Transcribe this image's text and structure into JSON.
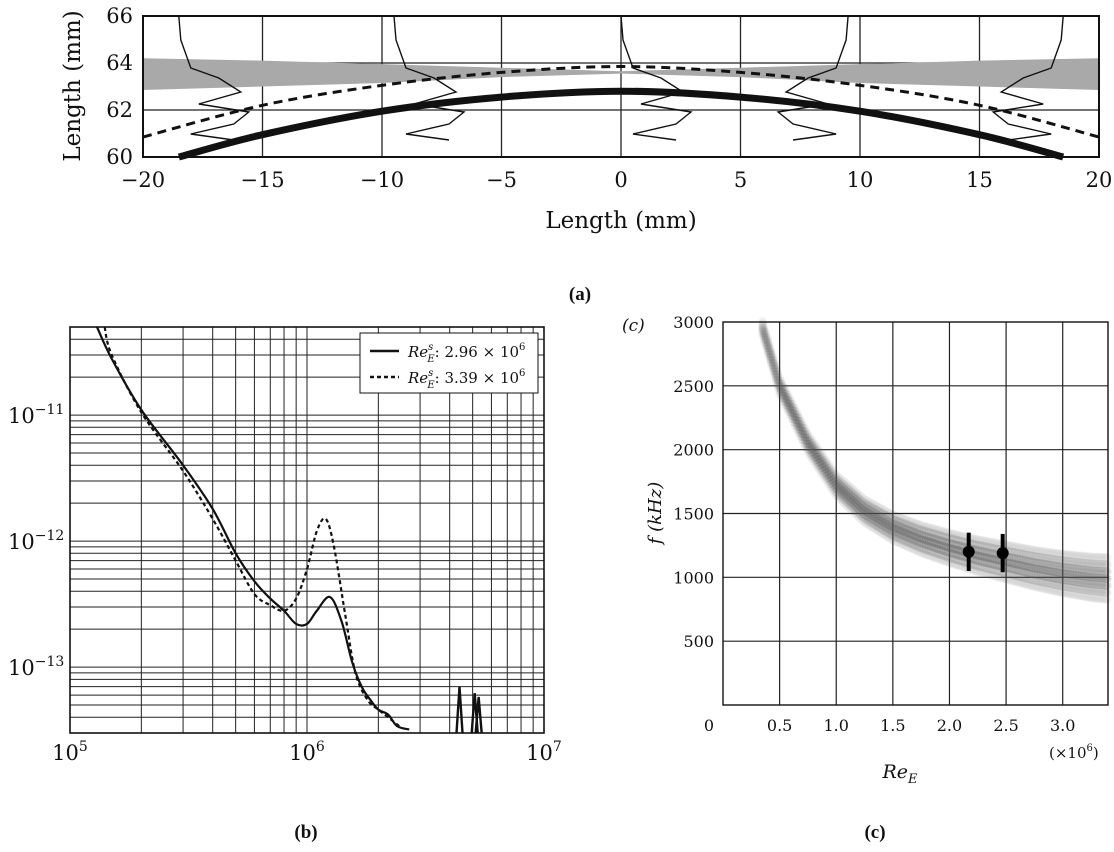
{
  "chart_data": [
    {
      "panel": "a",
      "type": "line",
      "caption": "(a)",
      "xlabel": "Length (mm)",
      "ylabel": "Length (mm)",
      "xlim": [
        -20,
        20
      ],
      "ylim": [
        60,
        66
      ],
      "x_ticks": [
        "−20",
        "−15",
        "−10",
        "−5",
        "0",
        "5",
        "10",
        "15",
        "20"
      ],
      "y_ticks": [
        "60",
        "62",
        "64",
        "66"
      ],
      "grid": true,
      "band": {
        "x": [
          -20,
          -15,
          -10,
          -5,
          0,
          5,
          10,
          15,
          20
        ],
        "upper": [
          64.2,
          64.1,
          63.95,
          63.8,
          63.65,
          63.8,
          63.95,
          64.1,
          64.2
        ],
        "lower": [
          62.85,
          63.0,
          63.15,
          63.4,
          63.55,
          63.4,
          63.15,
          63.0,
          62.85
        ],
        "color": "#a9a9a9"
      },
      "series": [
        {
          "style": "thick-solid",
          "x": [
            -18.5,
            -15,
            -10,
            -5,
            0,
            5,
            10,
            15,
            18.5
          ],
          "y": [
            60.0,
            60.95,
            61.95,
            62.55,
            62.8,
            62.55,
            61.95,
            60.95,
            60.0
          ]
        },
        {
          "style": "dashed",
          "x": [
            -20,
            -15,
            -10,
            -5,
            0,
            5,
            10,
            15,
            20
          ],
          "y": [
            60.85,
            62.2,
            63.05,
            63.6,
            63.85,
            63.6,
            63.05,
            62.2,
            60.85
          ]
        }
      ],
      "profile_stations": [
        -18.5,
        -9.5,
        0,
        9.5,
        18.5
      ]
    },
    {
      "panel": "b",
      "type": "line",
      "caption": "(b)",
      "x_scale": "log",
      "y_scale": "log",
      "xlim": [
        100000,
        10000000
      ],
      "ylim": [
        3e-14,
        5e-11
      ],
      "x_tick_labels": [
        {
          "base": "10",
          "exp": "5"
        },
        {
          "base": "10",
          "exp": "6"
        },
        {
          "base": "10",
          "exp": "7"
        }
      ],
      "y_tick_labels": [
        {
          "base": "10",
          "exp": "−11"
        },
        {
          "base": "10",
          "exp": "−12"
        },
        {
          "base": "10",
          "exp": "−13"
        }
      ],
      "grid": true,
      "legend_position": "top-right",
      "legend": [
        {
          "label": "Re",
          "sup": "s",
          "sub": "E",
          "value": ": 2.96 × 10",
          "exp": "6",
          "style": "solid"
        },
        {
          "label": "Re",
          "sup": "s",
          "sub": "E",
          "value": ": 3.39 × 10",
          "exp": "6",
          "style": "dotted"
        }
      ],
      "series": [
        {
          "style": "solid",
          "x": [
            130000,
            150000,
            200000,
            300000,
            400000,
            500000,
            600000,
            700000,
            800000,
            900000,
            1000000,
            1100000,
            1250000,
            1400000,
            1550000,
            1700000,
            1850000,
            2000000,
            2200000,
            2400000,
            2700000
          ],
          "y": [
            5e-11,
            2.8e-11,
            1.1e-11,
            4e-12,
            1.8e-12,
            8e-13,
            4.8e-13,
            3.5e-13,
            2.8e-13,
            2.2e-13,
            2.2e-13,
            2.8e-13,
            3.6e-13,
            2.3e-13,
            1.1e-13,
            7e-14,
            5.5e-14,
            4.6e-14,
            4.2e-14,
            3.4e-14,
            3.2e-14
          ]
        },
        {
          "style": "dotted",
          "x": [
            140000,
            150000,
            200000,
            300000,
            400000,
            500000,
            600000,
            700000,
            800000,
            900000,
            1000000,
            1100000,
            1200000,
            1300000,
            1450000,
            1600000,
            1800000,
            2000000,
            2200000,
            2500000
          ],
          "y": [
            5e-11,
            3e-11,
            1.05e-11,
            3.6e-12,
            1.5e-12,
            7e-13,
            3.8e-13,
            3.1e-13,
            2.8e-13,
            3.5e-13,
            6e-13,
            1.2e-12,
            1.5e-12,
            9e-13,
            2.6e-13,
            9e-14,
            5.5e-14,
            4.6e-14,
            4e-14,
            3.3e-14
          ]
        }
      ]
    },
    {
      "panel": "c",
      "type": "scatter",
      "caption": "(c)",
      "panel_label": "(c)",
      "xlabel": "Re",
      "xlabel_sub": "E",
      "ylabel": "f (kHz)",
      "x_multiplier": "(×10",
      "x_multiplier_exp": "6",
      "xlim": [
        0,
        3.4
      ],
      "ylim": [
        0,
        3000
      ],
      "x_ticks": [
        "0",
        "0.5",
        "1.0",
        "1.5",
        "2.0",
        "2.5",
        "3.0"
      ],
      "y_ticks": [
        "500",
        "1000",
        "1500",
        "2000",
        "2500",
        "3000"
      ],
      "grid": true,
      "band": {
        "x": [
          0.35,
          0.5,
          0.75,
          1.0,
          1.25,
          1.5,
          1.75,
          2.0,
          2.25,
          2.5,
          2.75,
          3.0,
          3.25,
          3.4
        ],
        "y": [
          2950,
          2500,
          2050,
          1720,
          1520,
          1390,
          1300,
          1230,
          1170,
          1120,
          1070,
          1030,
          1000,
          990
        ]
      },
      "points": [
        {
          "x": 2.17,
          "y": 1200,
          "err": 150
        },
        {
          "x": 2.47,
          "y": 1190,
          "err": 150
        }
      ]
    }
  ]
}
